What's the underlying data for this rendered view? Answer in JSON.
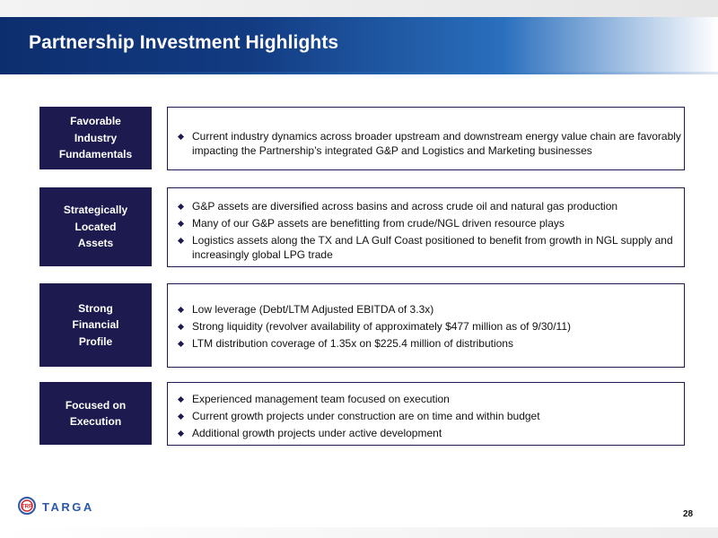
{
  "slide": {
    "title": "Partnership Investment Highlights",
    "page_number": "28",
    "logo_text": "TARGA",
    "logo_mark_text": "TRP"
  },
  "sections": [
    {
      "label_lines": [
        "Favorable",
        "Industry",
        "Fundamentals"
      ],
      "bullets": [
        "Current industry dynamics across broader upstream and downstream energy value chain are favorably impacting the Partnership’s integrated G&P and Logistics and Marketing businesses"
      ]
    },
    {
      "label_lines": [
        "Strategically",
        "Located",
        "Assets"
      ],
      "bullets": [
        "G&P assets are diversified across basins and across crude oil and natural gas production",
        "Many of our G&P assets are benefitting from crude/NGL driven resource plays",
        "Logistics assets along the TX and LA Gulf Coast positioned to benefit from growth in NGL supply and increasingly global LPG trade"
      ]
    },
    {
      "label_lines": [
        "Strong",
        "Financial",
        "Profile"
      ],
      "bullets": [
        "Low leverage (Debt/LTM Adjusted EBITDA of 3.3x)",
        "Strong liquidity (revolver availability of approximately $477 million as of 9/30/11)",
        "LTM distribution coverage of 1.35x on $225.4 million of distributions"
      ]
    },
    {
      "label_lines": [
        "Focused on",
        "Execution"
      ],
      "bullets": [
        "Experienced management team focused on execution",
        "Current growth projects under construction are on time and within budget",
        "Additional growth projects under active development"
      ]
    }
  ],
  "colors": {
    "navy": "#1c1a4f",
    "header_blue": "#123b82",
    "logo_blue": "#2b5aa8",
    "logo_red": "#d7262a"
  }
}
